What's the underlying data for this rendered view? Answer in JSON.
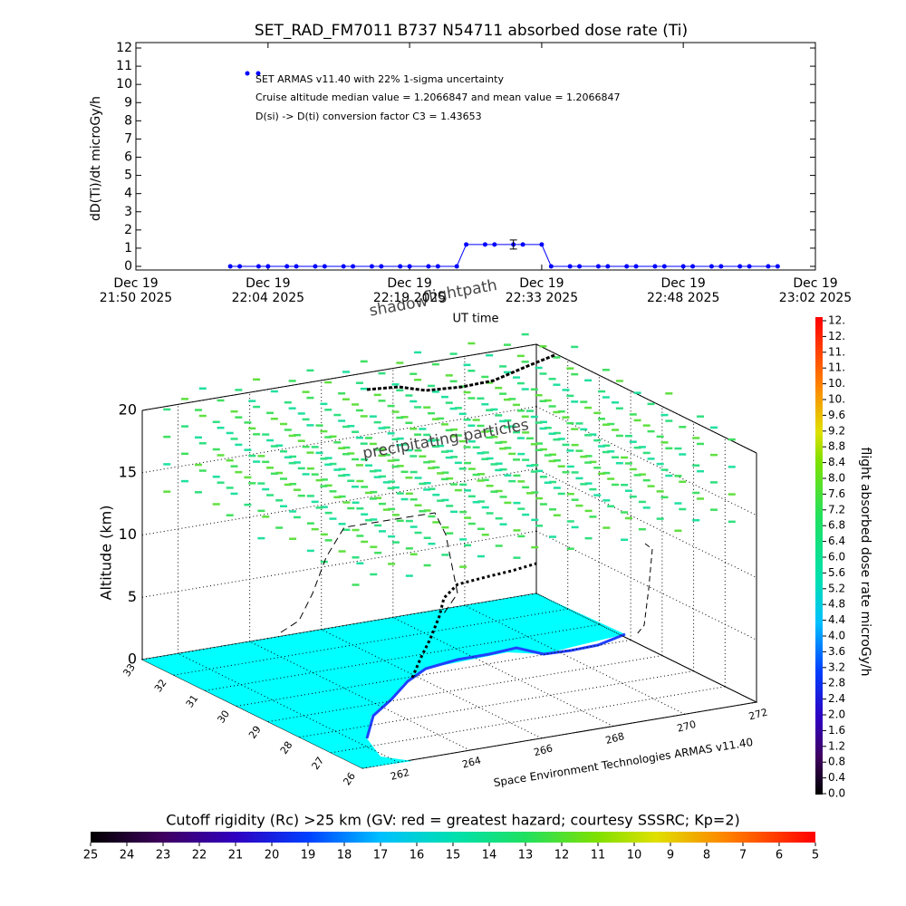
{
  "chart_data": [
    {
      "type": "line",
      "title": "SET_RAD_FM7011  B737 N54711 absorbed dose rate (Ti)",
      "ylabel": "dD(Ti)/dt microGy/h",
      "xlabel": "UT time",
      "annotations": [
        "SET ARMAS v11.40 with 22% 1-sigma uncertainty",
        "Cruise altitude median value = 1.2066847 and mean value = 1.2066847",
        "D(si) -> D(ti) conversion factor C3 = 1.43653"
      ],
      "color": "#0000ff",
      "xlim": [
        "21:50",
        "23:02"
      ],
      "xticks": [
        {
          "value": "21:50",
          "label": [
            "Dec 19",
            "21:50 2025"
          ]
        },
        {
          "value": "22:04",
          "label": [
            "Dec 19",
            "22:04 2025"
          ]
        },
        {
          "value": "22:19",
          "label": [
            "Dec 19",
            "22:19 2025"
          ]
        },
        {
          "value": "22:33",
          "label": [
            "Dec 19",
            "22:33 2025"
          ]
        },
        {
          "value": "22:48",
          "label": [
            "Dec 19",
            "22:48 2025"
          ]
        },
        {
          "value": "23:02",
          "label": [
            "Dec 19",
            "23:02 2025"
          ]
        }
      ],
      "ylim": [
        0,
        12
      ],
      "yticks": [
        0,
        1,
        2,
        3,
        4,
        5,
        6,
        7,
        8,
        9,
        10,
        11,
        12
      ],
      "x": [
        "22:00",
        "22:01",
        "22:03",
        "22:04",
        "22:06",
        "22:07",
        "22:09",
        "22:10",
        "22:12",
        "22:13",
        "22:15",
        "22:16",
        "22:18",
        "22:19",
        "22:21",
        "22:22",
        "22:24",
        "22:25",
        "22:27",
        "22:28",
        "22:30",
        "22:31",
        "22:33",
        "22:34",
        "22:36",
        "22:37",
        "22:39",
        "22:40",
        "22:42",
        "22:43",
        "22:45",
        "22:46",
        "22:48",
        "22:49",
        "22:51",
        "22:52",
        "22:54",
        "22:55",
        "22:57",
        "22:58"
      ],
      "values": [
        0,
        0,
        0,
        0,
        0,
        0,
        0,
        0,
        0,
        0,
        0,
        0,
        0,
        0,
        0,
        0,
        0,
        1.2,
        1.2,
        1.2,
        1.2,
        1.2,
        1.2,
        0,
        0,
        0,
        0,
        0,
        0,
        0,
        0,
        0,
        0,
        0,
        0,
        0,
        0,
        0,
        0,
        0
      ],
      "errors": [
        null,
        null,
        null,
        null,
        null,
        null,
        null,
        null,
        null,
        null,
        null,
        null,
        null,
        null,
        null,
        null,
        null,
        null,
        null,
        null,
        0.25,
        null,
        null,
        null,
        null,
        null,
        null,
        null,
        null,
        null,
        null,
        null,
        null,
        null,
        null,
        null,
        null,
        null,
        null,
        null
      ]
    },
    {
      "type": "track3d",
      "zlabel": "Altitude (km)",
      "zlim": [
        0,
        20
      ],
      "zticks": [
        0,
        5,
        10,
        15,
        20
      ],
      "latlim": [
        26,
        33
      ],
      "latticks": [
        33,
        32,
        31,
        30,
        29,
        28,
        27,
        26
      ],
      "lonlim": [
        261,
        272
      ],
      "lonticks": [
        262,
        264,
        266,
        268,
        270,
        272
      ],
      "annotations": [
        "shadow",
        "flightpath",
        "precipitating particles",
        "Space Environment Technologies ARMAS v11.40"
      ]
    },
    {
      "type": "colorbar",
      "label": "flight absorbed dose rate microGy/h",
      "lim": [
        0,
        12
      ],
      "ticks": [
        {
          "value": 0,
          "label": "0.0"
        },
        0.4,
        0.8,
        1.2,
        1.6,
        {
          "value": 2,
          "label": "2.0"
        },
        2.4,
        2.8,
        3.2,
        3.6,
        {
          "value": 4,
          "label": "4.0"
        },
        4.4,
        4.8,
        5.2,
        5.6,
        {
          "value": 6,
          "label": "6.0"
        },
        6.4,
        6.8,
        7.2,
        7.6,
        {
          "value": 8,
          "label": "8.0"
        },
        8.4,
        8.8,
        9.2,
        9.6,
        {
          "value": 10,
          "label": "10."
        },
        {
          "value": 10.4,
          "label": "10."
        },
        {
          "value": 10.8,
          "label": "11."
        },
        {
          "value": 11.2,
          "label": "11."
        },
        {
          "value": 11.6,
          "label": "12."
        },
        {
          "value": 12,
          "label": "12."
        }
      ]
    },
    {
      "type": "colorbar",
      "label": "Cutoff rigidity (Rc) >25 km (GV: red = greatest hazard; courtesy SSSRC; Kp=2)",
      "lim": [
        25,
        5
      ],
      "ticks": [
        25,
        24,
        23,
        22,
        21,
        20,
        19,
        18,
        17,
        16,
        15,
        14,
        13,
        12,
        11,
        10,
        9,
        8,
        7,
        6,
        5
      ]
    }
  ]
}
